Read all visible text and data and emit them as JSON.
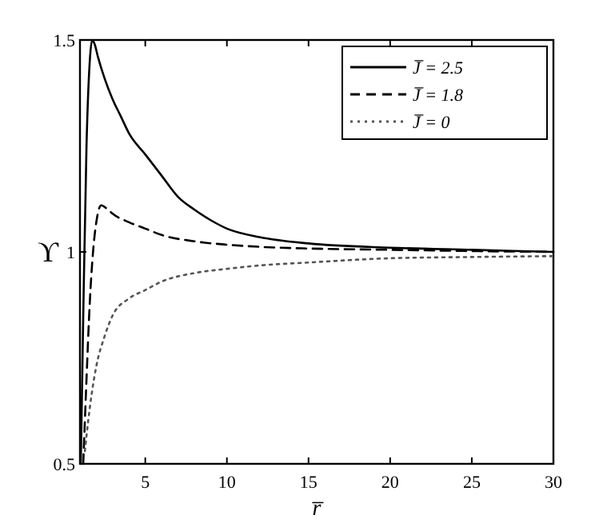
{
  "chart_data": {
    "type": "line",
    "xlabel": "r̅",
    "ylabel": "ϒ",
    "xlim": [
      1,
      30
    ],
    "ylim": [
      0.5,
      1.5
    ],
    "xticks": [
      5,
      10,
      15,
      20,
      25,
      30
    ],
    "yticks": [
      0.5,
      1,
      1.5
    ],
    "grid": false,
    "legend": "top right",
    "marker": "none",
    "series": [
      {
        "name": "J̅ = 2.5",
        "color": "#000000",
        "line_style": "solid",
        "x": [
          1.05,
          1.2,
          1.4,
          1.6,
          1.75,
          1.9,
          2.1,
          2.5,
          3,
          3.5,
          4,
          5,
          6,
          7,
          8,
          9,
          10,
          12,
          15,
          20,
          25,
          30
        ],
        "values": [
          0.5,
          0.85,
          1.25,
          1.45,
          1.5,
          1.49,
          1.46,
          1.41,
          1.36,
          1.32,
          1.28,
          1.23,
          1.18,
          1.13,
          1.1,
          1.075,
          1.055,
          1.035,
          1.02,
          1.01,
          1.005,
          1.0
        ]
      },
      {
        "name": "J̅ = 1.8",
        "color": "#000000",
        "line_style": "dashed",
        "x": [
          1.2,
          1.4,
          1.6,
          1.8,
          2.0,
          2.3,
          2.7,
          3,
          4,
          5,
          6,
          8,
          10,
          12,
          15,
          20,
          25,
          30
        ],
        "values": [
          0.5,
          0.7,
          0.88,
          1.0,
          1.07,
          1.11,
          1.1,
          1.09,
          1.07,
          1.055,
          1.04,
          1.025,
          1.017,
          1.012,
          1.008,
          1.005,
          1.002,
          1.0
        ]
      },
      {
        "name": "J̅ = 0",
        "color": "#555555",
        "line_style": "dotted",
        "x": [
          1.3,
          1.5,
          1.7,
          2,
          2.5,
          3,
          4,
          5,
          6,
          8,
          10,
          12,
          15,
          20,
          25,
          30
        ],
        "values": [
          0.53,
          0.6,
          0.66,
          0.73,
          0.8,
          0.85,
          0.89,
          0.91,
          0.93,
          0.95,
          0.96,
          0.968,
          0.975,
          0.985,
          0.988,
          0.99
        ]
      }
    ]
  }
}
